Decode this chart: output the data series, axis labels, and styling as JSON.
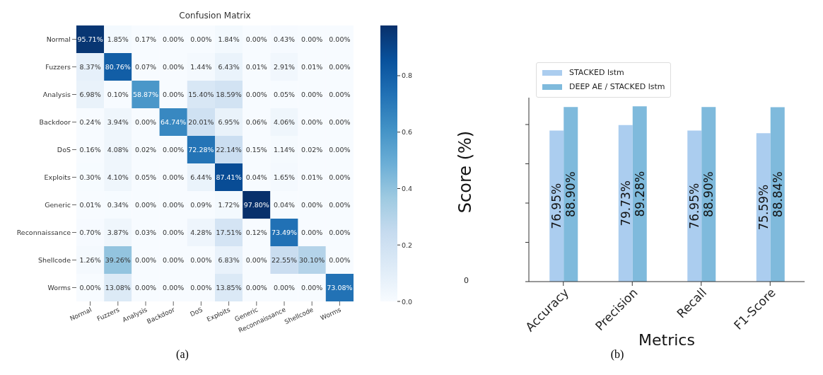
{
  "chart_data": [
    {
      "type": "heatmap",
      "title": "Confusion Matrix",
      "categories": [
        "Normal",
        "Fuzzers",
        "Analysis",
        "Backdoor",
        "DoS",
        "Exploits",
        "Generic",
        "Reconnaissance",
        "Shellcode",
        "Worms"
      ],
      "y_categories": [
        "Normal",
        "Fuzzers",
        "Analysis",
        "Backdoor",
        "DoS",
        "Exploits",
        "Generic",
        "Reconnaissance",
        "Shellcode",
        "Worms"
      ],
      "cells": [
        [
          0.9571,
          0.0185,
          0.0017,
          0,
          0,
          0.0184,
          0,
          0.0043,
          0,
          0
        ],
        [
          0.0837,
          0.8076,
          0.0007,
          0,
          0.0144,
          0.0643,
          0.0001,
          0.0291,
          0.0001,
          0
        ],
        [
          0.0698,
          0.001,
          0.5887,
          0,
          0.154,
          0.1859,
          0,
          0.0005,
          0,
          0
        ],
        [
          0.0024,
          0.0394,
          0,
          0.6474,
          0.2001,
          0.0695,
          0.0006,
          0.0406,
          0,
          0
        ],
        [
          0.0016,
          0.0408,
          0.0002,
          0,
          0.7228,
          0.2214,
          0.0015,
          0.0114,
          0.0002,
          0
        ],
        [
          0.003,
          0.041,
          0.0005,
          0,
          0.0644,
          0.8741,
          0.0004,
          0.0165,
          0.0001,
          0
        ],
        [
          0.0001,
          0.0034,
          0,
          0,
          0.0009,
          0.0172,
          0.978,
          0.0004,
          0,
          0
        ],
        [
          0.007,
          0.0387,
          0.0003,
          0,
          0.0428,
          0.1751,
          0.0012,
          0.7349,
          0,
          0
        ],
        [
          0.0126,
          0.3926,
          0,
          0,
          0,
          0.0683,
          0,
          0.2255,
          0.301,
          0
        ],
        [
          0,
          0.1308,
          0,
          0,
          0,
          0.1385,
          0,
          0,
          0,
          0.7308
        ]
      ],
      "cell_labels": [
        [
          "95.71%",
          "1.85%",
          "0.17%",
          "0.00%",
          "0.00%",
          "1.84%",
          "0.00%",
          "0.43%",
          "0.00%",
          "0.00%"
        ],
        [
          "8.37%",
          "80.76%",
          "0.07%",
          "0.00%",
          "1.44%",
          "6.43%",
          "0.01%",
          "2.91%",
          "0.01%",
          "0.00%"
        ],
        [
          "6.98%",
          "0.10%",
          "58.87%",
          "0.00%",
          "15.40%",
          "18.59%",
          "0.00%",
          "0.05%",
          "0.00%",
          "0.00%"
        ],
        [
          "0.24%",
          "3.94%",
          "0.00%",
          "64.74%",
          "20.01%",
          "6.95%",
          "0.06%",
          "4.06%",
          "0.00%",
          "0.00%"
        ],
        [
          "0.16%",
          "4.08%",
          "0.02%",
          "0.00%",
          "72.28%",
          "22.14%",
          "0.15%",
          "1.14%",
          "0.02%",
          "0.00%"
        ],
        [
          "0.30%",
          "4.10%",
          "0.05%",
          "0.00%",
          "6.44%",
          "87.41%",
          "0.04%",
          "1.65%",
          "0.01%",
          "0.00%"
        ],
        [
          "0.01%",
          "0.34%",
          "0.00%",
          "0.00%",
          "0.09%",
          "1.72%",
          "97.80%",
          "0.04%",
          "0.00%",
          "0.00%"
        ],
        [
          "0.70%",
          "3.87%",
          "0.03%",
          "0.00%",
          "4.28%",
          "17.51%",
          "0.12%",
          "73.49%",
          "0.00%",
          "0.00%"
        ],
        [
          "1.26%",
          "39.26%",
          "0.00%",
          "0.00%",
          "0.00%",
          "6.83%",
          "0.00%",
          "22.55%",
          "30.10%",
          "0.00%"
        ],
        [
          "0.00%",
          "13.08%",
          "0.00%",
          "0.00%",
          "0.00%",
          "13.85%",
          "0.00%",
          "0.00%",
          "0.00%",
          "73.08%"
        ]
      ],
      "clim": [
        0,
        0.978
      ],
      "cticks": [
        {
          "value": 0,
          "label": "0.0"
        },
        {
          "value": 0.2,
          "label": "0.2"
        },
        {
          "value": 0.4,
          "label": "0.4"
        },
        {
          "value": 0.6,
          "label": "0.6"
        },
        {
          "value": 0.8,
          "label": "0.8"
        }
      ],
      "annotations": [
        "(a)"
      ]
    },
    {
      "type": "bar",
      "categories": [
        "Accuracy",
        "Precision",
        "Recall",
        "F1-Score"
      ],
      "series": [
        {
          "name": "STACKED lstm",
          "color": "#abcdef",
          "values": [
            76.95,
            79.73,
            76.95,
            75.59
          ],
          "value_labels": [
            "76.95%",
            "79.73%",
            "76.95%",
            "75.59%"
          ]
        },
        {
          "name": "DEEP AE / STACKED lstm",
          "color": "#7fbadc",
          "values": [
            88.9,
            89.28,
            88.9,
            88.84
          ],
          "value_labels": [
            "88.90%",
            "89.28%",
            "88.90%",
            "88.84%"
          ]
        }
      ],
      "ylim": [
        0,
        93.7
      ],
      "yticks": [
        {
          "value": 0,
          "label": null
        },
        {
          "value": 20,
          "label": null
        },
        {
          "value": 40,
          "label": null
        },
        {
          "value": 60,
          "label": null
        },
        {
          "value": 80,
          "label": null
        }
      ],
      "xlabel": "Metrics",
      "ylabel": "Score (%)",
      "legend": "top",
      "annotations": [
        "0",
        "(b)"
      ]
    }
  ]
}
